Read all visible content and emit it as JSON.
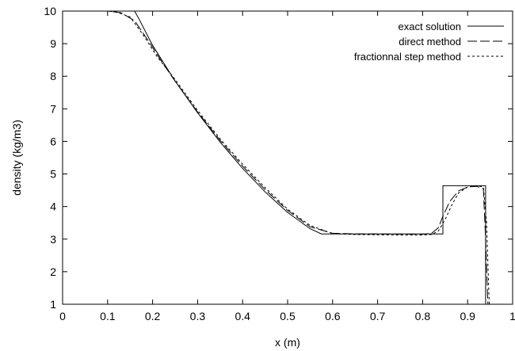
{
  "chart_data": {
    "type": "line",
    "title": "",
    "xlabel": "x (m)",
    "ylabel": "density (kg/m3)",
    "xlim": [
      0,
      1
    ],
    "ylim": [
      1,
      10
    ],
    "x_ticks": [
      "0",
      "0.1",
      "0.2",
      "0.3",
      "0.4",
      "0.5",
      "0.6",
      "0.7",
      "0.8",
      "0.9",
      "1"
    ],
    "y_ticks": [
      "1",
      "2",
      "3",
      "4",
      "5",
      "6",
      "7",
      "8",
      "9",
      "10"
    ],
    "grid": false,
    "legend_position": "top-right",
    "series": [
      {
        "name": "exact solution",
        "style": "solid",
        "x": [
          0.0,
          0.16,
          0.17,
          0.2,
          0.25,
          0.3,
          0.35,
          0.4,
          0.45,
          0.5,
          0.55,
          0.575,
          0.845,
          0.845,
          0.94,
          0.94
        ],
        "y": [
          10.0,
          10.0,
          9.75,
          8.95,
          7.85,
          6.88,
          5.98,
          5.17,
          4.45,
          3.82,
          3.32,
          3.16,
          3.16,
          4.64,
          4.64,
          1.0
        ]
      },
      {
        "name": "direct method",
        "style": "long-dash",
        "x": [
          0.0,
          0.1,
          0.13,
          0.16,
          0.19,
          0.22,
          0.25,
          0.3,
          0.35,
          0.4,
          0.45,
          0.5,
          0.55,
          0.6,
          0.65,
          0.7,
          0.75,
          0.8,
          0.82,
          0.835,
          0.845,
          0.86,
          0.88,
          0.9,
          0.92,
          0.935,
          0.94,
          0.945
        ],
        "y": [
          10.0,
          10.0,
          9.95,
          9.7,
          9.1,
          8.45,
          7.85,
          6.9,
          6.03,
          5.24,
          4.52,
          3.88,
          3.38,
          3.18,
          3.16,
          3.16,
          3.15,
          3.15,
          3.18,
          3.35,
          3.7,
          4.15,
          4.48,
          4.6,
          4.62,
          4.55,
          3.0,
          1.0
        ]
      },
      {
        "name": "fractionnal step method",
        "style": "short-dash",
        "x": [
          0.0,
          0.1,
          0.12,
          0.15,
          0.18,
          0.21,
          0.25,
          0.3,
          0.35,
          0.4,
          0.45,
          0.5,
          0.55,
          0.6,
          0.65,
          0.7,
          0.75,
          0.8,
          0.82,
          0.835,
          0.85,
          0.865,
          0.88,
          0.9,
          0.92,
          0.935,
          0.942,
          0.948
        ],
        "y": [
          10.0,
          10.0,
          9.97,
          9.82,
          9.25,
          8.6,
          7.9,
          6.95,
          6.08,
          5.3,
          4.58,
          3.92,
          3.42,
          3.17,
          3.14,
          3.13,
          3.12,
          3.12,
          3.14,
          3.25,
          3.6,
          4.05,
          4.42,
          4.6,
          4.64,
          4.6,
          3.5,
          1.0
        ]
      }
    ]
  }
}
